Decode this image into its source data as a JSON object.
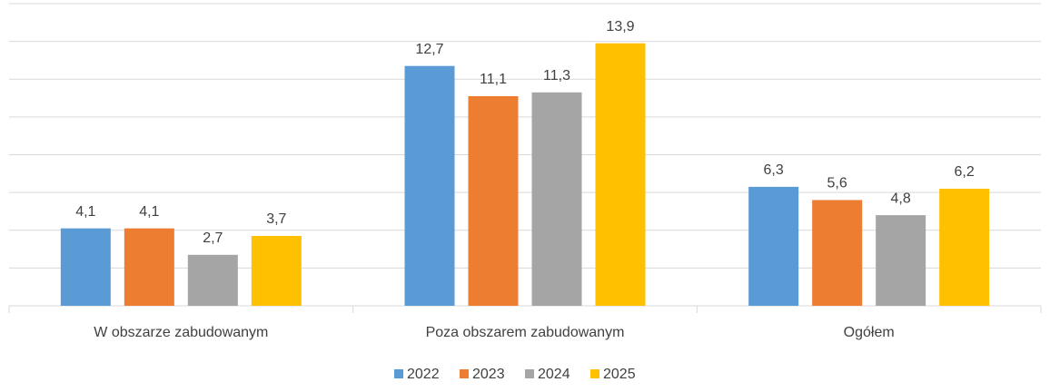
{
  "chart_data": {
    "type": "bar",
    "categories": [
      "W obszarze zabudowanym",
      "Poza obszarem zabudowanym",
      "Ogółem"
    ],
    "series": [
      {
        "name": "2022",
        "color": "#5b9bd5",
        "values": [
          4.1,
          12.7,
          6.3
        ],
        "value_labels": [
          "4,1",
          "12,7",
          "6,3"
        ]
      },
      {
        "name": "2023",
        "color": "#ed7d31",
        "values": [
          4.1,
          11.1,
          5.6
        ],
        "value_labels": [
          "4,1",
          "11,1",
          "5,6"
        ]
      },
      {
        "name": "2024",
        "color": "#a5a5a5",
        "values": [
          2.7,
          11.3,
          4.8
        ],
        "value_labels": [
          "2,7",
          "11,3",
          "4,8"
        ]
      },
      {
        "name": "2025",
        "color": "#ffc000",
        "values": [
          3.7,
          13.9,
          6.2
        ],
        "value_labels": [
          "3,7",
          "13,9",
          "6,2"
        ]
      }
    ],
    "ylim": [
      0,
      16
    ],
    "yticks": [
      0,
      2,
      4,
      6,
      8,
      10,
      12,
      14,
      16
    ],
    "grid": true,
    "legend": "bottom"
  }
}
